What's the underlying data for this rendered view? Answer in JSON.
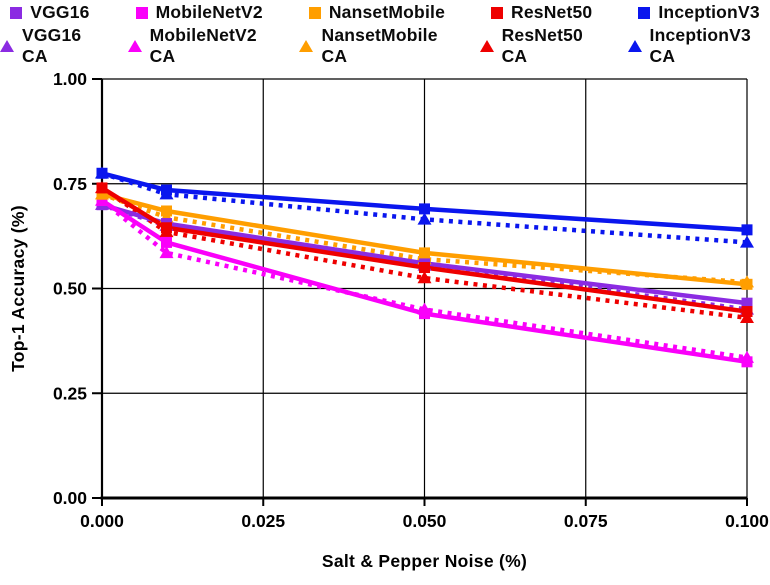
{
  "chart_data": {
    "type": "line",
    "title": "",
    "xlabel": "Salt & Pepper Noise (%)",
    "ylabel": "Top-1 Accuracy (%)",
    "xlim": [
      0,
      0.1
    ],
    "ylim": [
      0,
      1
    ],
    "grid": true,
    "legend_position": "top",
    "x": [
      0.0,
      0.01,
      0.05,
      0.1
    ],
    "x_ticks": {
      "values": [
        0,
        0.025,
        0.05,
        0.075,
        0.1
      ],
      "labels": [
        "0.000",
        "0.025",
        "0.050",
        "0.075",
        "0.100"
      ]
    },
    "y_ticks": {
      "values": [
        0,
        0.25,
        0.5,
        0.75,
        1.0
      ],
      "labels": [
        "0.00",
        "0.25",
        "0.50",
        "0.75",
        "1.00"
      ]
    },
    "series": [
      {
        "name": "VGG16",
        "color": "#8B2BE2",
        "style": "solid",
        "marker": "square",
        "values": [
          0.7,
          0.655,
          0.56,
          0.465
        ]
      },
      {
        "name": "MobileNetV2",
        "color": "#FA00FA",
        "style": "solid",
        "marker": "square",
        "values": [
          0.71,
          0.61,
          0.44,
          0.325
        ]
      },
      {
        "name": "NansetMobile",
        "color": "#FF9E00",
        "style": "solid",
        "marker": "square",
        "values": [
          0.725,
          0.685,
          0.585,
          0.51
        ]
      },
      {
        "name": "ResNet50",
        "color": "#EE0000",
        "style": "solid",
        "marker": "square",
        "values": [
          0.74,
          0.645,
          0.55,
          0.445
        ]
      },
      {
        "name": "InceptionV3",
        "color": "#0A16EE",
        "style": "solid",
        "marker": "square",
        "values": [
          0.775,
          0.735,
          0.69,
          0.64
        ]
      },
      {
        "name": "VGG16 CA",
        "color": "#8B2BE2",
        "style": "dotted",
        "marker": "triangle",
        "values": [
          0.7,
          0.65,
          0.555,
          0.45
        ]
      },
      {
        "name": "MobileNetV2 CA",
        "color": "#FA00FA",
        "style": "dotted",
        "marker": "triangle",
        "values": [
          0.71,
          0.585,
          0.45,
          0.335
        ]
      },
      {
        "name": "NansetMobile CA",
        "color": "#FF9E00",
        "style": "dotted",
        "marker": "triangle",
        "values": [
          0.725,
          0.67,
          0.57,
          0.515
        ]
      },
      {
        "name": "ResNet50 CA",
        "color": "#EE0000",
        "style": "dotted",
        "marker": "triangle",
        "values": [
          0.74,
          0.635,
          0.525,
          0.43
        ]
      },
      {
        "name": "InceptionV3 CA",
        "color": "#0A16EE",
        "style": "dotted",
        "marker": "triangle",
        "values": [
          0.775,
          0.725,
          0.665,
          0.61
        ]
      }
    ],
    "axis_color": "#000000",
    "background": "#FFFFFF"
  }
}
